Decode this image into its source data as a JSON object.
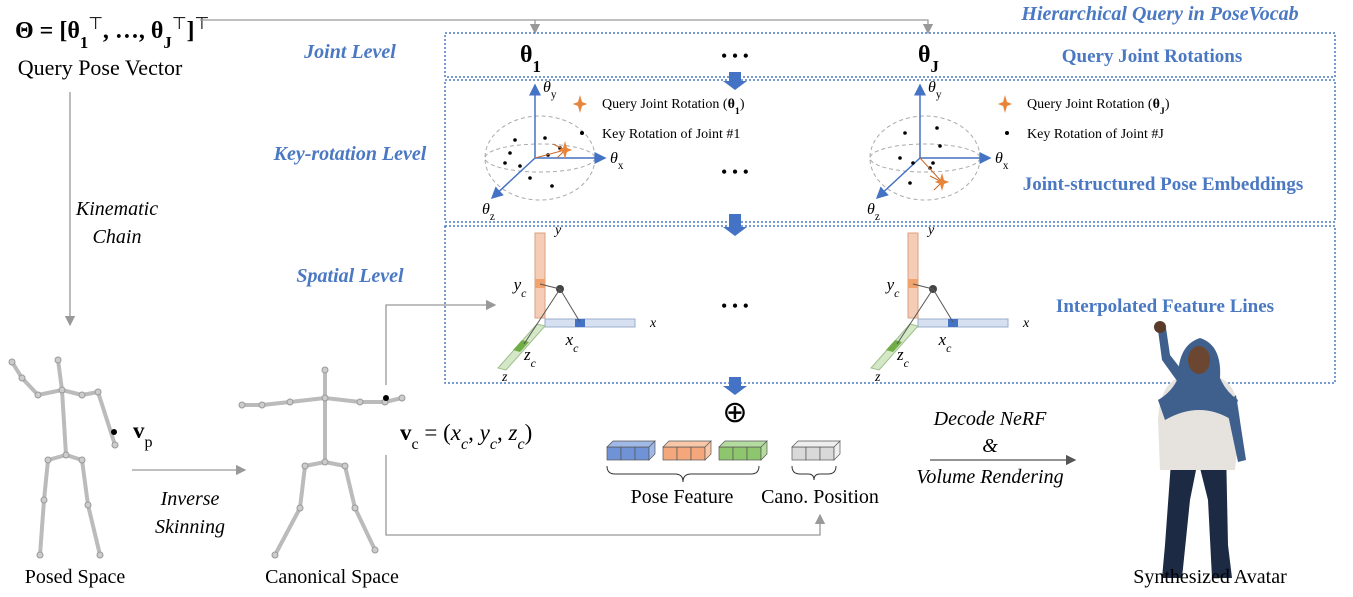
{
  "title": "Hierarchical Query in PoseVocab",
  "query_pose": {
    "formula": [
      "Θ = [θ",
      "1",
      "⊤",
      ", …, θ",
      "J",
      "⊤",
      "]",
      "⊤"
    ],
    "label": "Query Pose Vector"
  },
  "levels": [
    {
      "label": "Joint Level",
      "description": "Query Joint Rotations"
    },
    {
      "label": "Key-rotation Level",
      "description": "Joint-structured Pose Embeddings"
    },
    {
      "label": "Spatial Level",
      "description": "Interpolated Feature Lines"
    }
  ],
  "joint_rotations": [
    {
      "symbol": "θ",
      "sub": "1"
    },
    {
      "symbol": "θ",
      "sub": "J"
    }
  ],
  "ellipsis": "• • •",
  "key_rotation": {
    "axis_symbol": "θ",
    "axes": [
      "y",
      "x",
      "z"
    ],
    "panels": [
      {
        "query_label": [
          "Query Joint Rotation (",
          "θ",
          "1",
          ")"
        ],
        "key_label": "Key Rotation of Joint #1"
      },
      {
        "query_label": [
          "Query Joint Rotation (",
          "θ",
          "J",
          ")"
        ],
        "key_label": "Key Rotation of Joint #J"
      }
    ]
  },
  "spatial": {
    "axes": [
      "y",
      "x",
      "z"
    ],
    "sample_axes": [
      [
        "y",
        "c"
      ],
      [
        "x",
        "c"
      ],
      [
        "z",
        "c"
      ]
    ]
  },
  "left": {
    "kinematic_chain": [
      "Kinematic",
      "Chain"
    ],
    "inverse_skinning": [
      "Inverse",
      "Skinning"
    ],
    "posed_point": [
      "v",
      "p"
    ],
    "canonical_point": [
      "v",
      "c",
      " = (",
      "x",
      "c",
      ", ",
      "y",
      "c",
      ", ",
      "z",
      "c",
      ")"
    ],
    "posed_space": "Posed Space",
    "canonical_space": "Canonical Space"
  },
  "feature": {
    "oplus": "⊕",
    "pose_feature": "Pose Feature",
    "cano_position": "Cano. Position"
  },
  "decode": [
    "Decode NeRF",
    "&",
    "Volume Rendering"
  ],
  "avatar_label": "Synthesized Avatar"
}
